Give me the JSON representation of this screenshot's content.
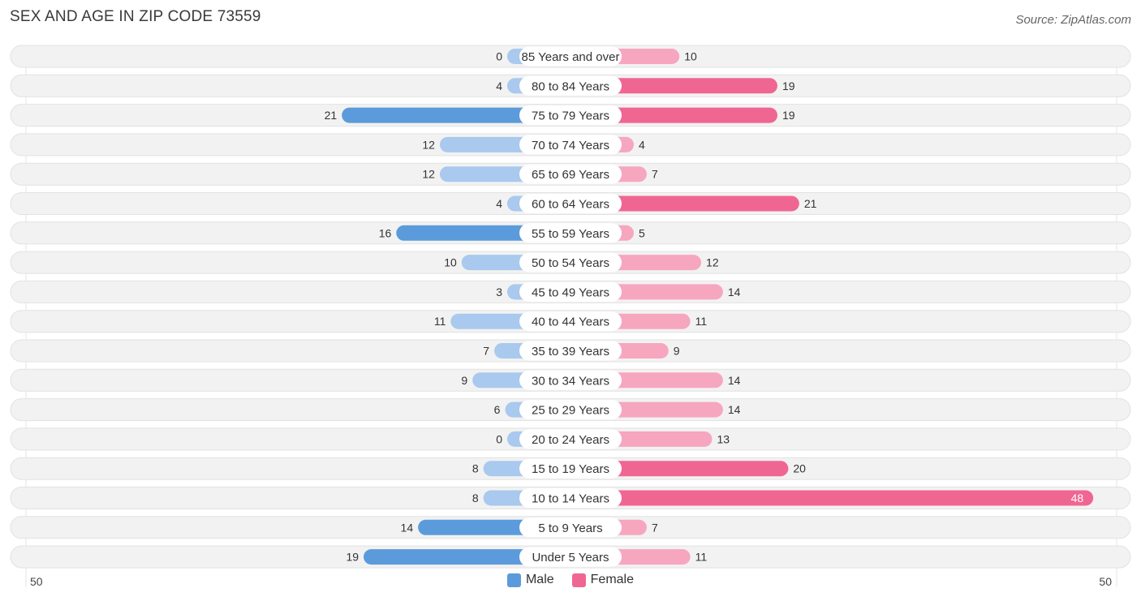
{
  "title": "SEX AND AGE IN ZIP CODE 73559",
  "source": "Source: ZipAtlas.com",
  "legend": {
    "male_label": "Male",
    "female_label": "Female"
  },
  "colors": {
    "male_dark": "#5b9bdb",
    "male_light": "#a9c9ee",
    "female_dark": "#f06693",
    "female_light": "#f7a6c0",
    "row_bg": "#f2f2f2",
    "row_border": "#e2e2e2"
  },
  "chart_data": {
    "type": "bar",
    "orientation": "horizontal-diverging",
    "xlim": [
      -50,
      50
    ],
    "axis_tick_left": "50",
    "axis_tick_right": "50",
    "categories": [
      "85 Years and over",
      "80 to 84 Years",
      "75 to 79 Years",
      "70 to 74 Years",
      "65 to 69 Years",
      "60 to 64 Years",
      "55 to 59 Years",
      "50 to 54 Years",
      "45 to 49 Years",
      "40 to 44 Years",
      "35 to 39 Years",
      "30 to 34 Years",
      "25 to 29 Years",
      "20 to 24 Years",
      "15 to 19 Years",
      "10 to 14 Years",
      "5 to 9 Years",
      "Under 5 Years"
    ],
    "series": [
      {
        "name": "Male",
        "values": [
          0,
          4,
          21,
          12,
          12,
          4,
          16,
          10,
          3,
          11,
          7,
          9,
          6,
          0,
          8,
          8,
          14,
          19
        ]
      },
      {
        "name": "Female",
        "values": [
          10,
          19,
          19,
          4,
          7,
          21,
          5,
          12,
          14,
          11,
          9,
          14,
          14,
          13,
          20,
          48,
          7,
          11
        ]
      }
    ],
    "legend_position": "bottom-center"
  }
}
